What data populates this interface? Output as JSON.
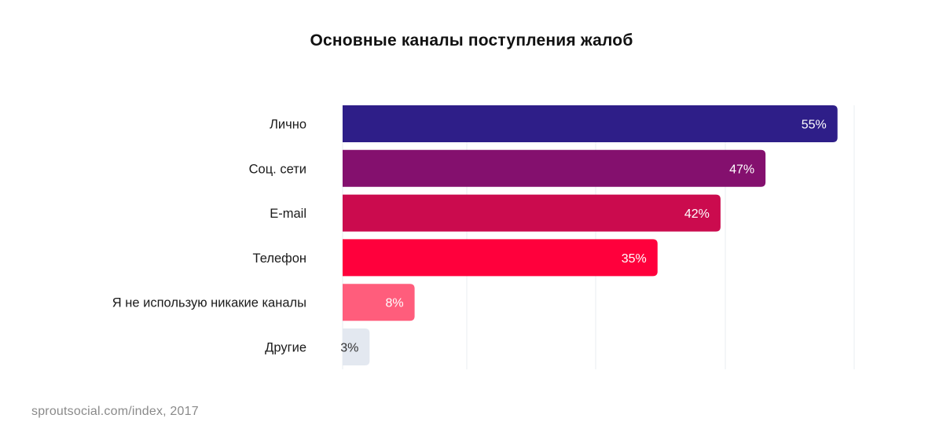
{
  "chart_data": {
    "type": "bar",
    "orientation": "horizontal",
    "title": "Основные каналы поступления жалоб",
    "categories": [
      "Лично",
      "Соц. сети",
      "E-mail",
      "Телефон",
      "Я не использую никакие каналы",
      "Другие"
    ],
    "values": [
      55,
      47,
      42,
      35,
      8,
      3
    ],
    "value_labels": [
      "55%",
      "47%",
      "42%",
      "35%",
      "8%",
      "3%"
    ],
    "colors": [
      "#2e1e88",
      "#84106e",
      "#cb0b4e",
      "#ff003c",
      "#ff5d7c",
      "#e3e8f0"
    ],
    "label_colors": [
      "#ffffff",
      "#ffffff",
      "#ffffff",
      "#ffffff",
      "#ffffff",
      "#333333"
    ],
    "xlim": [
      0,
      60
    ],
    "grid": true,
    "xlabel": "",
    "ylabel": ""
  },
  "footer": {
    "source": "sproutsocial.com/index, 2017"
  }
}
